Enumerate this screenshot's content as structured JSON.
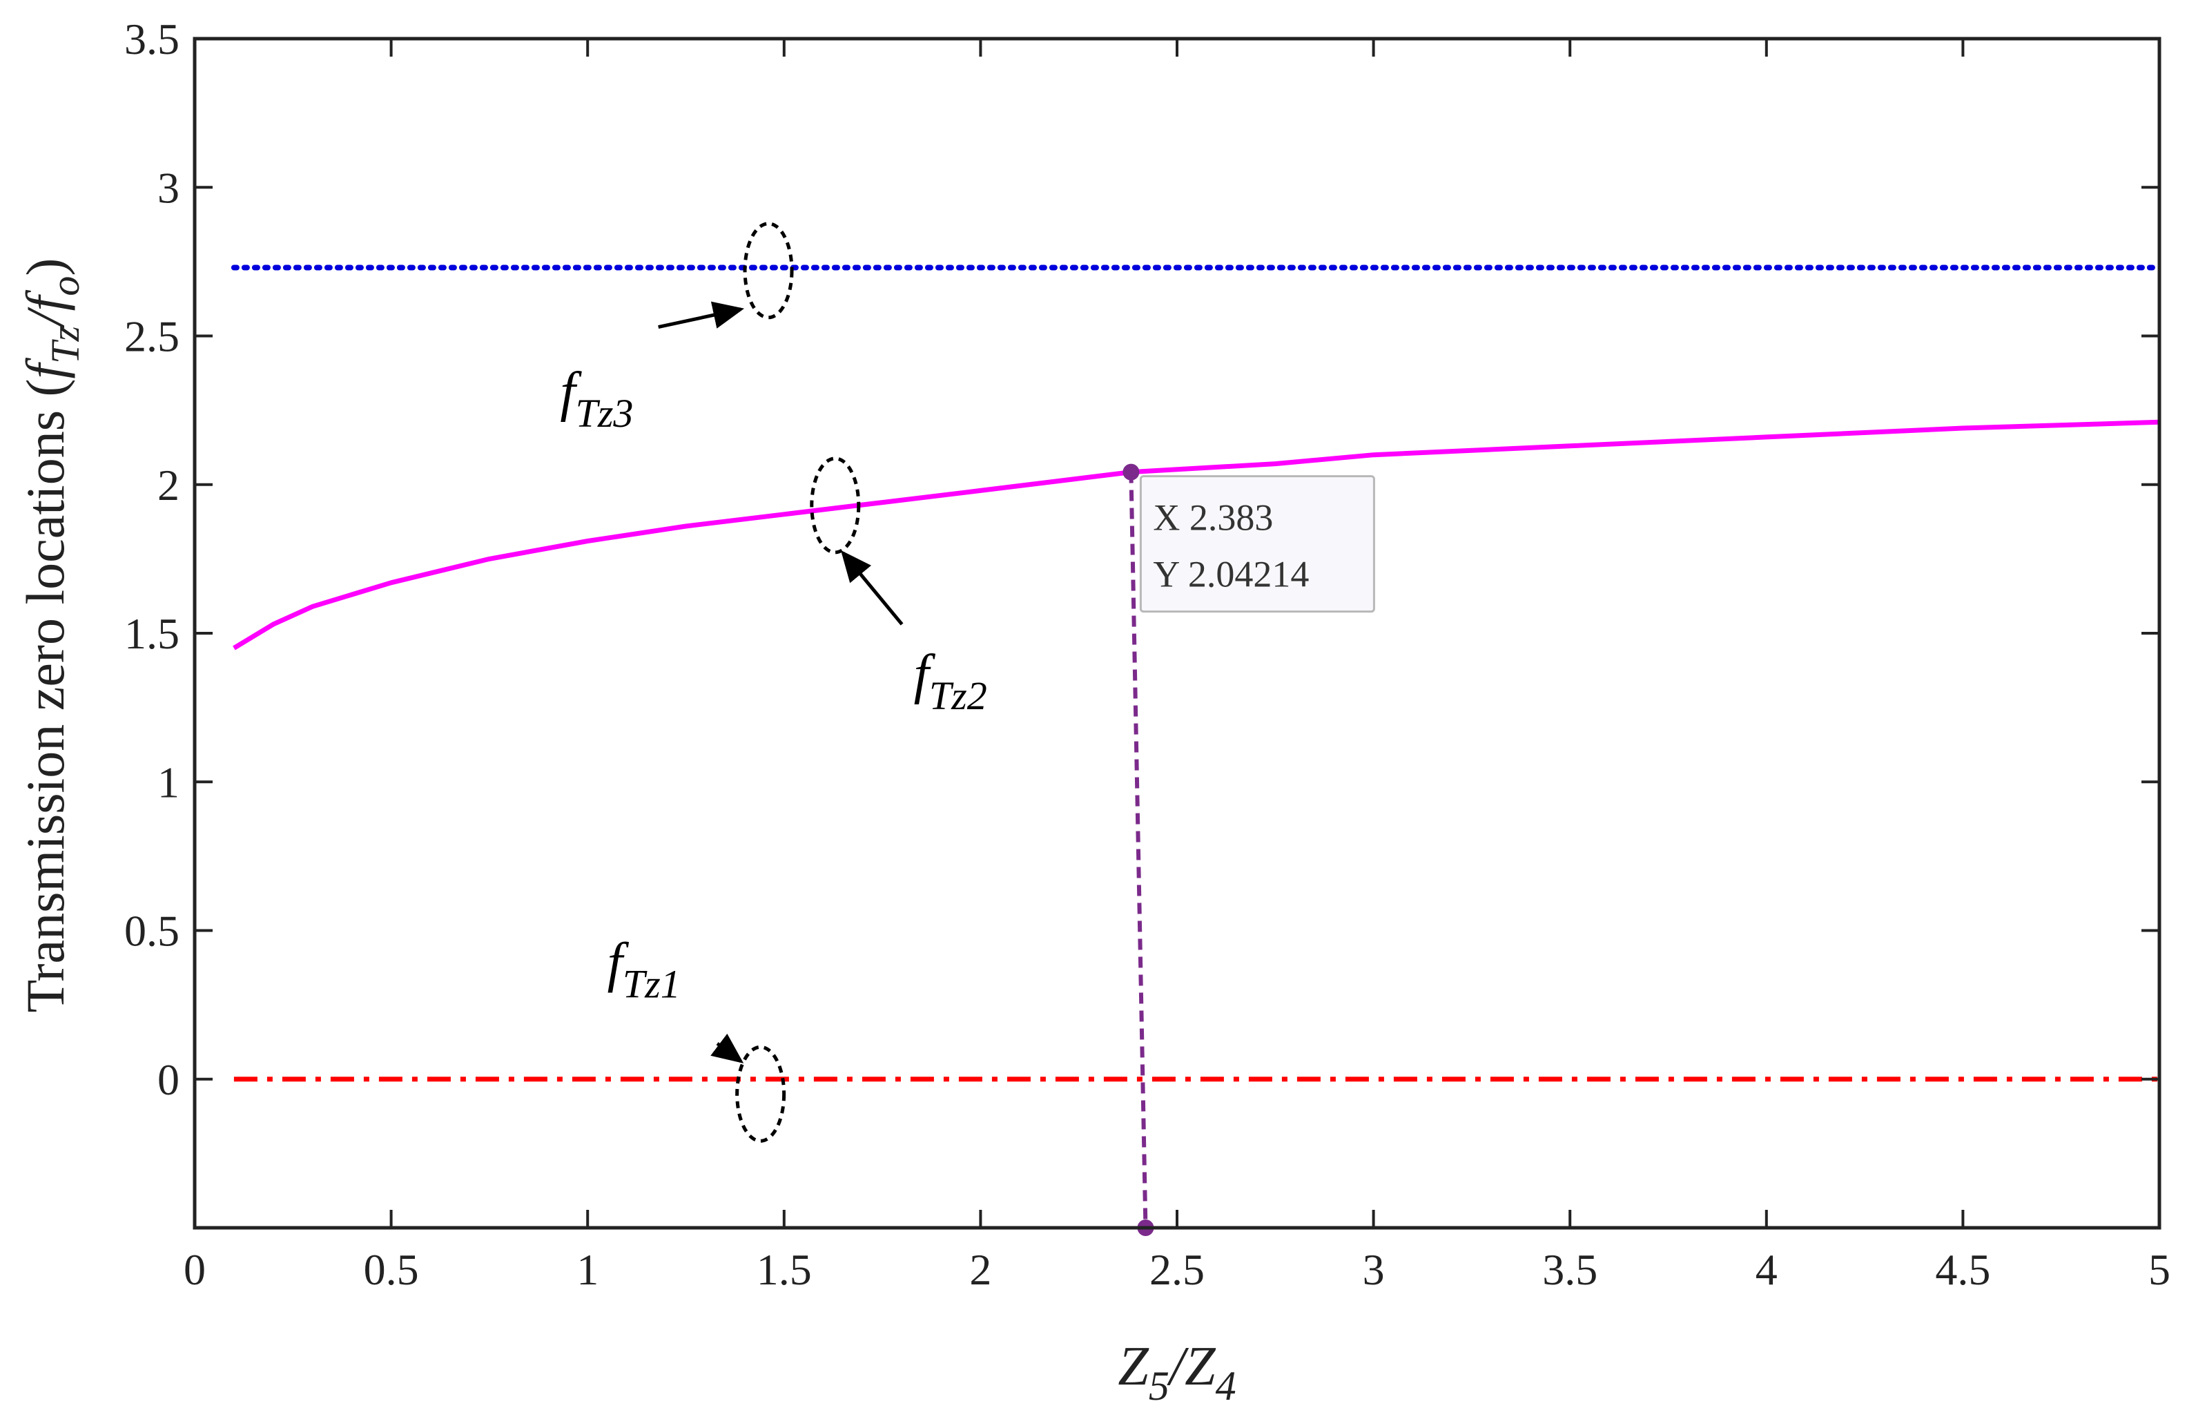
{
  "chart_data": {
    "type": "line",
    "xlabel": {
      "main": "Z",
      "sub1": "5",
      "sep": "/Z",
      "sub2": "4"
    },
    "ylabel": {
      "main": "Transmission zero locations (",
      "f1": "f",
      "sub": "Tz",
      "sep": "/f",
      "sub2": "o",
      "close": ")"
    },
    "xlim": [
      0,
      5
    ],
    "ylim": [
      -0.5,
      3.5
    ],
    "xticks": [
      0,
      0.5,
      1,
      1.5,
      2,
      2.5,
      3,
      3.5,
      4,
      4.5,
      5
    ],
    "xtick_labels": [
      "0",
      "0.5",
      "1",
      "1.5",
      "2",
      "2.5",
      "3",
      "3.5",
      "4",
      "4.5",
      "5"
    ],
    "yticks": [
      0,
      0.5,
      1,
      1.5,
      2,
      2.5,
      3,
      3.5
    ],
    "ytick_labels": [
      "0",
      "0.5",
      "1",
      "1.5",
      "2",
      "2.5",
      "3",
      "3.5"
    ],
    "grid": false,
    "series": [
      {
        "color": "#ff0000",
        "style": "dash-dot",
        "x": [
          0.1,
          5.0
        ],
        "y": [
          0,
          0
        ]
      },
      {
        "color": "#ff00ff",
        "style": "solid",
        "x": [
          0.1,
          0.2,
          0.3,
          0.5,
          0.75,
          1.0,
          1.25,
          1.5,
          1.75,
          2.0,
          2.383,
          2.75,
          3.0,
          3.5,
          4.0,
          4.5,
          5.0
        ],
        "y": [
          1.45,
          1.53,
          1.59,
          1.67,
          1.75,
          1.81,
          1.86,
          1.9,
          1.94,
          1.98,
          2.04214,
          2.07,
          2.1,
          2.13,
          2.16,
          2.19,
          2.21
        ]
      },
      {
        "color": "#0000dd",
        "style": "dotted",
        "x": [
          0.1,
          5.0
        ],
        "y": [
          2.73,
          2.73
        ]
      }
    ],
    "annotations": [
      {
        "label_main": "f",
        "label_sub": "Tz1",
        "ellipse": [
          1.44,
          -0.05
        ],
        "arrow_from": [
          1.33,
          0.12
        ],
        "arrow_to": [
          1.39,
          0.06
        ],
        "text_at": [
          1.05,
          0.33
        ]
      },
      {
        "label_main": "f",
        "label_sub": "Tz2",
        "ellipse": [
          1.63,
          1.93
        ],
        "arrow_from": [
          1.8,
          1.53
        ],
        "arrow_to": [
          1.65,
          1.77
        ],
        "text_at": [
          1.83,
          1.3
        ]
      },
      {
        "label_main": "f",
        "label_sub": "Tz3",
        "ellipse": [
          1.46,
          2.72
        ],
        "arrow_from": [
          1.18,
          2.53
        ],
        "arrow_to": [
          1.39,
          2.59
        ],
        "text_at": [
          0.93,
          2.25
        ]
      }
    ],
    "datatip": {
      "x": 2.383,
      "y": 2.04214,
      "x_label": "X 2.383",
      "y_label": "Y 2.04214",
      "drop_to": [
        2.42,
        -0.5
      ]
    }
  }
}
